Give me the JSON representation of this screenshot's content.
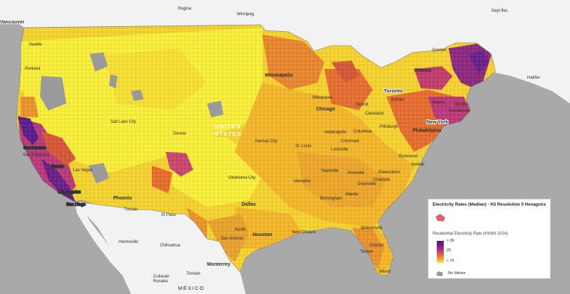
{
  "map": {
    "colors": {
      "water": "#a9a9a9",
      "land_other": "#f2f2f2",
      "low": "#f8ee3a",
      "mid": "#f2b62a",
      "high": "#e56d2f",
      "very_high": "#b93a78",
      "max": "#5a1d8a",
      "no_values": "#9a9a9a"
    },
    "labels": {
      "regina": "Regina",
      "winnipeg": "Winnipeg",
      "sept_iles": "Sept-Îles",
      "vancouver": "Vancouver",
      "seattle": "Seattle",
      "portland": "Portland",
      "quebec": "Quebec",
      "ottawa": "Ottawa",
      "halifax": "Halifax",
      "minneapolis": "Minneapolis",
      "toronto": "Toronto",
      "milwaukee": "Milwaukee",
      "detroit": "Detroit",
      "buffalo": "Buffalo",
      "albany": "Albany",
      "boston": "Boston",
      "providence": "Providence",
      "chicago": "Chicago",
      "cleveland": "Cleveland",
      "new_york": "New York",
      "salt_lake_city": "Salt Lake City",
      "denver": "Denver",
      "united": "UNITED",
      "states": "STATES",
      "indianapolis": "Indianapolis",
      "columbus": "Columbus",
      "pittsburgh": "Pittsburgh",
      "philadelphia": "Philadelphia",
      "sacramento": "Sacramento",
      "san_francisco": "San Francisco",
      "kansas_city": "Kansas City",
      "st_louis": "St. Louis",
      "cincinnati": "Cincinnati",
      "louisville": "Louisville",
      "richmond": "Richmond",
      "norfolk": "Norfolk",
      "fresno": "Fresno",
      "las_vegas": "Las Vegas",
      "nashville": "Nashville",
      "knoxville": "Knoxville",
      "greensboro": "Greensboro",
      "charlotte": "Charlotte",
      "greenville": "Greenville",
      "los_angeles": "Los Angeles",
      "oklahoma_city": "Oklahoma City",
      "memphis": "Memphis",
      "san_diego": "San Diego",
      "phoenix": "Phoenix",
      "birmingham": "Birmingham",
      "atlanta": "Atlanta",
      "dallas": "Dallas",
      "tucson": "Tucson",
      "el_paso": "El Paso",
      "jacksonville": "Jacksonville",
      "austin": "Austin",
      "houston": "Houston",
      "new_orleans": "New Orleans",
      "san_antonio": "San Antonio",
      "orlando": "Orlando",
      "hermosillo": "Hermosillo",
      "chihuahua": "Chihuahua",
      "tampa": "Tampa",
      "monterrey": "Monterrey",
      "miami": "Miami",
      "culiacan_rosales": "Culiacán\nRosales",
      "torreon": "Torreón",
      "mexico": "MÉXICO"
    }
  },
  "legend": {
    "title": "Electricity Rates (Median) - H3 Resolution 5 Hexagons",
    "subtitle": "Residential Electricity Rate (¢/kWh 2024)",
    "tick_high": "> 30",
    "tick_mid": "20",
    "tick_low": "< 10",
    "no_values": "No Values"
  }
}
